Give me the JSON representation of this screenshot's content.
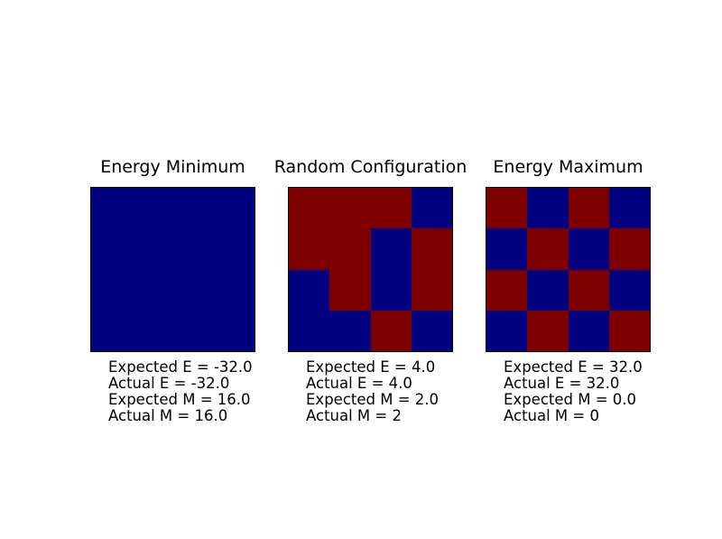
{
  "figure": {
    "background": "#ffffff",
    "border_color": "#000000",
    "spin_up_color": "#800000",
    "spin_down_color": "#000080"
  },
  "chart_data": [
    {
      "type": "heatmap",
      "title": "Energy Minimum",
      "grid_size": [
        4,
        4
      ],
      "values": [
        [
          -1,
          -1,
          -1,
          -1
        ],
        [
          -1,
          -1,
          -1,
          -1
        ],
        [
          -1,
          -1,
          -1,
          -1
        ],
        [
          -1,
          -1,
          -1,
          -1
        ]
      ],
      "colormap": {
        "-1": "#000080",
        "1": "#800000"
      },
      "annotations": [
        "Expected E = -32.0",
        "Actual E = -32.0",
        "Expected M = 16.0",
        "Actual M = 16.0"
      ],
      "axes": "off",
      "legend": "none"
    },
    {
      "type": "heatmap",
      "title": "Random Configuration",
      "grid_size": [
        4,
        4
      ],
      "values": [
        [
          1,
          1,
          1,
          -1
        ],
        [
          1,
          1,
          -1,
          1
        ],
        [
          -1,
          1,
          -1,
          1
        ],
        [
          -1,
          -1,
          1,
          -1
        ]
      ],
      "colormap": {
        "-1": "#000080",
        "1": "#800000"
      },
      "annotations": [
        "Expected E = 4.0",
        "Actual E = 4.0",
        "Expected M = 2.0",
        "Actual M = 2"
      ],
      "axes": "off",
      "legend": "none"
    },
    {
      "type": "heatmap",
      "title": "Energy Maximum",
      "grid_size": [
        4,
        4
      ],
      "values": [
        [
          1,
          -1,
          1,
          -1
        ],
        [
          -1,
          1,
          -1,
          1
        ],
        [
          1,
          -1,
          1,
          -1
        ],
        [
          -1,
          1,
          -1,
          1
        ]
      ],
      "colormap": {
        "-1": "#000080",
        "1": "#800000"
      },
      "annotations": [
        "Expected E = 32.0",
        "Actual E = 32.0",
        "Expected M = 0.0",
        "Actual M = 0"
      ],
      "axes": "off",
      "legend": "none"
    }
  ]
}
